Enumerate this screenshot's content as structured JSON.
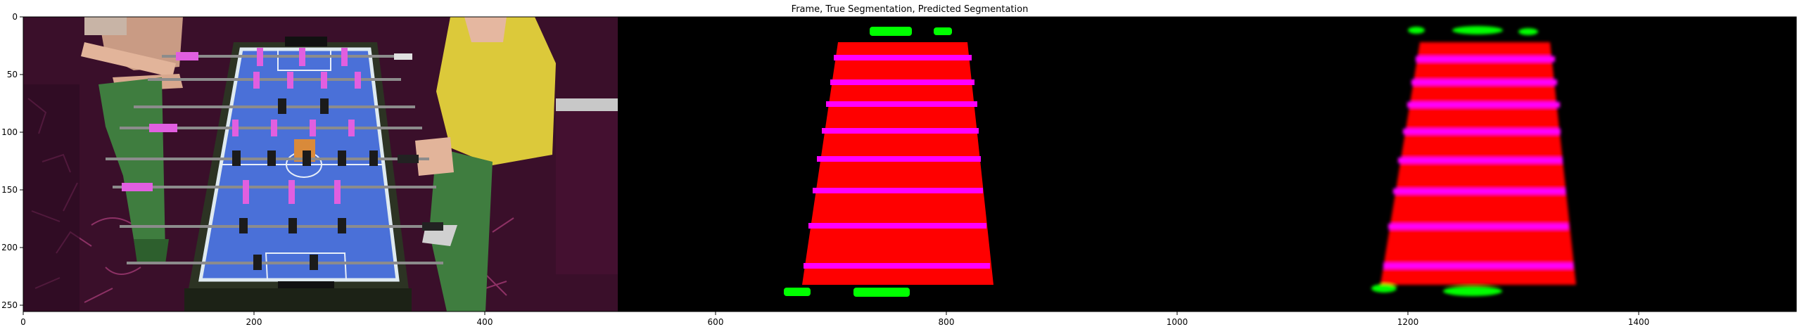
{
  "figure": {
    "title": "Frame, True Segmentation, Predicted Segmentation",
    "panels": [
      "frame",
      "true-segmentation",
      "predicted-segmentation"
    ],
    "x_ticks": [
      "0",
      "200",
      "400",
      "600",
      "800",
      "1000",
      "1200",
      "1400"
    ],
    "y_ticks": [
      "0",
      "50",
      "100",
      "150",
      "200",
      "250"
    ],
    "image_size": {
      "width": 1536,
      "height": 256
    }
  },
  "colors": {
    "field": "#4a70d8",
    "table_frame": "#2c3323",
    "player_pink": "#e15fe0",
    "player_dark": "#1b1b1b",
    "carpet": "#3a0f2a",
    "shirt_yellow": "#dcc93a",
    "pants_green": "#3f7d3f",
    "seg_field": "#ff0000",
    "seg_rod": "#ff00ff",
    "seg_goal": "#00ff00",
    "background": "#000000"
  }
}
